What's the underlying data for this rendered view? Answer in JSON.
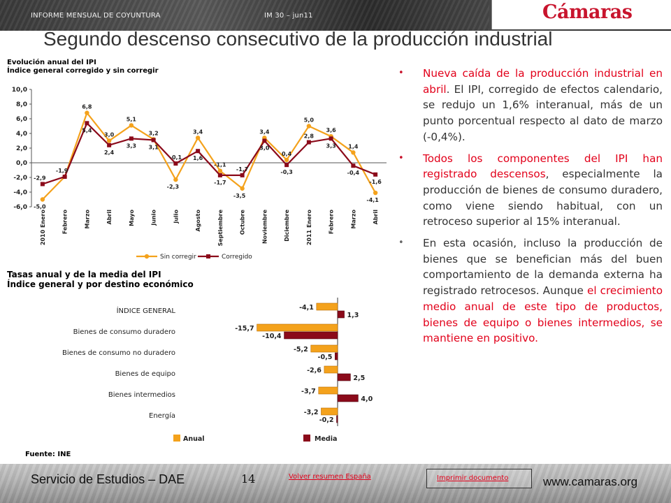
{
  "header": {
    "report": "INFORME MENSUAL DE COYUNTURA",
    "issue": "IM 30 – jun11",
    "logo": "Cámaras"
  },
  "slide": {
    "title": "Segundo descenso consecutivo de la producción industrial"
  },
  "charts": {
    "ipi_evolution": {
      "title_line1": "Evolución anual del IPI",
      "title_line2": "Índice general corregido y sin corregir"
    },
    "ipi_rates": {
      "title_line1": "Tasas anual y de la media del IPI",
      "title_line2": "Índice general y por destino económico"
    },
    "source": "Fuente: INE"
  },
  "chart_data": [
    {
      "type": "line",
      "x": [
        "2010 Enero",
        "Febrero",
        "Marzo",
        "Abril",
        "Mayo",
        "Junio",
        "Julio",
        "Agosto",
        "Septiembre",
        "Octubre",
        "Noviembre",
        "Diciembre",
        "2011 Enero",
        "Febrero",
        "Marzo",
        "Abril"
      ],
      "ylim": [
        -6.0,
        10.0
      ],
      "yticks": [
        "10,0",
        "8,0",
        "6,0",
        "4,0",
        "2,0",
        "0,0",
        "-2,0",
        "-4,0",
        "-6,0"
      ],
      "grid": false,
      "legend_position": "bottom",
      "series": [
        {
          "name": "Sin corregir",
          "color": "#f4a21c",
          "values": [
            -5.0,
            -1.9,
            6.8,
            3.0,
            5.1,
            3.2,
            -2.3,
            3.4,
            -1.1,
            -3.5,
            3.4,
            0.4,
            5.0,
            3.6,
            1.4,
            -4.1
          ],
          "labels": [
            "-5,0",
            "",
            "6,8",
            "3,0",
            "5,1",
            "3,2",
            "-2,3",
            "3,4",
            "-1,1",
            "-3,5",
            "3,4",
            "0,4",
            "5,0",
            "3,6",
            "1,4",
            "-4,1"
          ]
        },
        {
          "name": "Corregido",
          "color": "#8b0a1a",
          "values": [
            -2.9,
            -1.9,
            5.4,
            2.4,
            3.3,
            3.1,
            -0.1,
            1.6,
            -1.7,
            -1.7,
            3.0,
            -0.3,
            2.8,
            3.3,
            -0.4,
            -1.6
          ],
          "labels": [
            "-2,9",
            "-1,9",
            "5,4",
            "2,4",
            "3,3",
            "3,1",
            "-0,1",
            "1,6",
            "-1,7",
            "-1,7",
            "3,0",
            "-0,3",
            "2,8",
            "3,3",
            "-0,4",
            "-1,6"
          ]
        }
      ]
    },
    {
      "type": "bar",
      "orientation": "horizontal",
      "categories": [
        "ÍNDICE GENERAL",
        "Bienes de consumo duradero",
        "Bienes de consumo no duradero",
        "Bienes de equipo",
        "Bienes intermedios",
        "Energía"
      ],
      "legend_position": "bottom",
      "series": [
        {
          "name": "Anual",
          "color": "#f4a21c",
          "values": [
            -4.1,
            -15.7,
            -5.2,
            -2.6,
            -3.7,
            -3.2
          ],
          "labels": [
            "-4,1",
            "-15,7",
            "-5,2",
            "-2,6",
            "-3,7",
            "-3,2"
          ]
        },
        {
          "name": "Media",
          "color": "#8b0a1a",
          "values": [
            1.3,
            -10.4,
            -0.5,
            2.5,
            4.0,
            -0.2
          ],
          "labels": [
            "1,3",
            "-10,4",
            "-0,5",
            "2,5",
            "4,0",
            "-0,2"
          ]
        }
      ]
    }
  ],
  "bullets": {
    "b1": {
      "highlight": "Nueva caída de la producción industrial en abril",
      "text": ". El IPI, corregido de efectos calendario, se redujo un 1,6% interanual, más de un punto porcentual respecto al dato de marzo (-0,4%)."
    },
    "b2": {
      "highlight": "Todos los componentes del IPI han registrado descensos",
      "text": ", especialmente la producción de bienes de consumo duradero, como viene siendo habitual, con un retroceso superior al 15% interanual."
    },
    "b3": {
      "text": "En esta ocasión, incluso la producción de bienes que se benefician más del buen comportamiento de la demanda externa ha registrado retrocesos. Aunque ",
      "highlight": "el crecimiento medio anual de este tipo de productos, bienes de equipo o bienes intermedios, se mantiene en positivo."
    }
  },
  "footer": {
    "service": "Servicio de Estudios – DAE",
    "page": "14",
    "link_summary": "Volver resumen España",
    "link_print": "Imprimir documento",
    "website": "www.camaras.org"
  }
}
